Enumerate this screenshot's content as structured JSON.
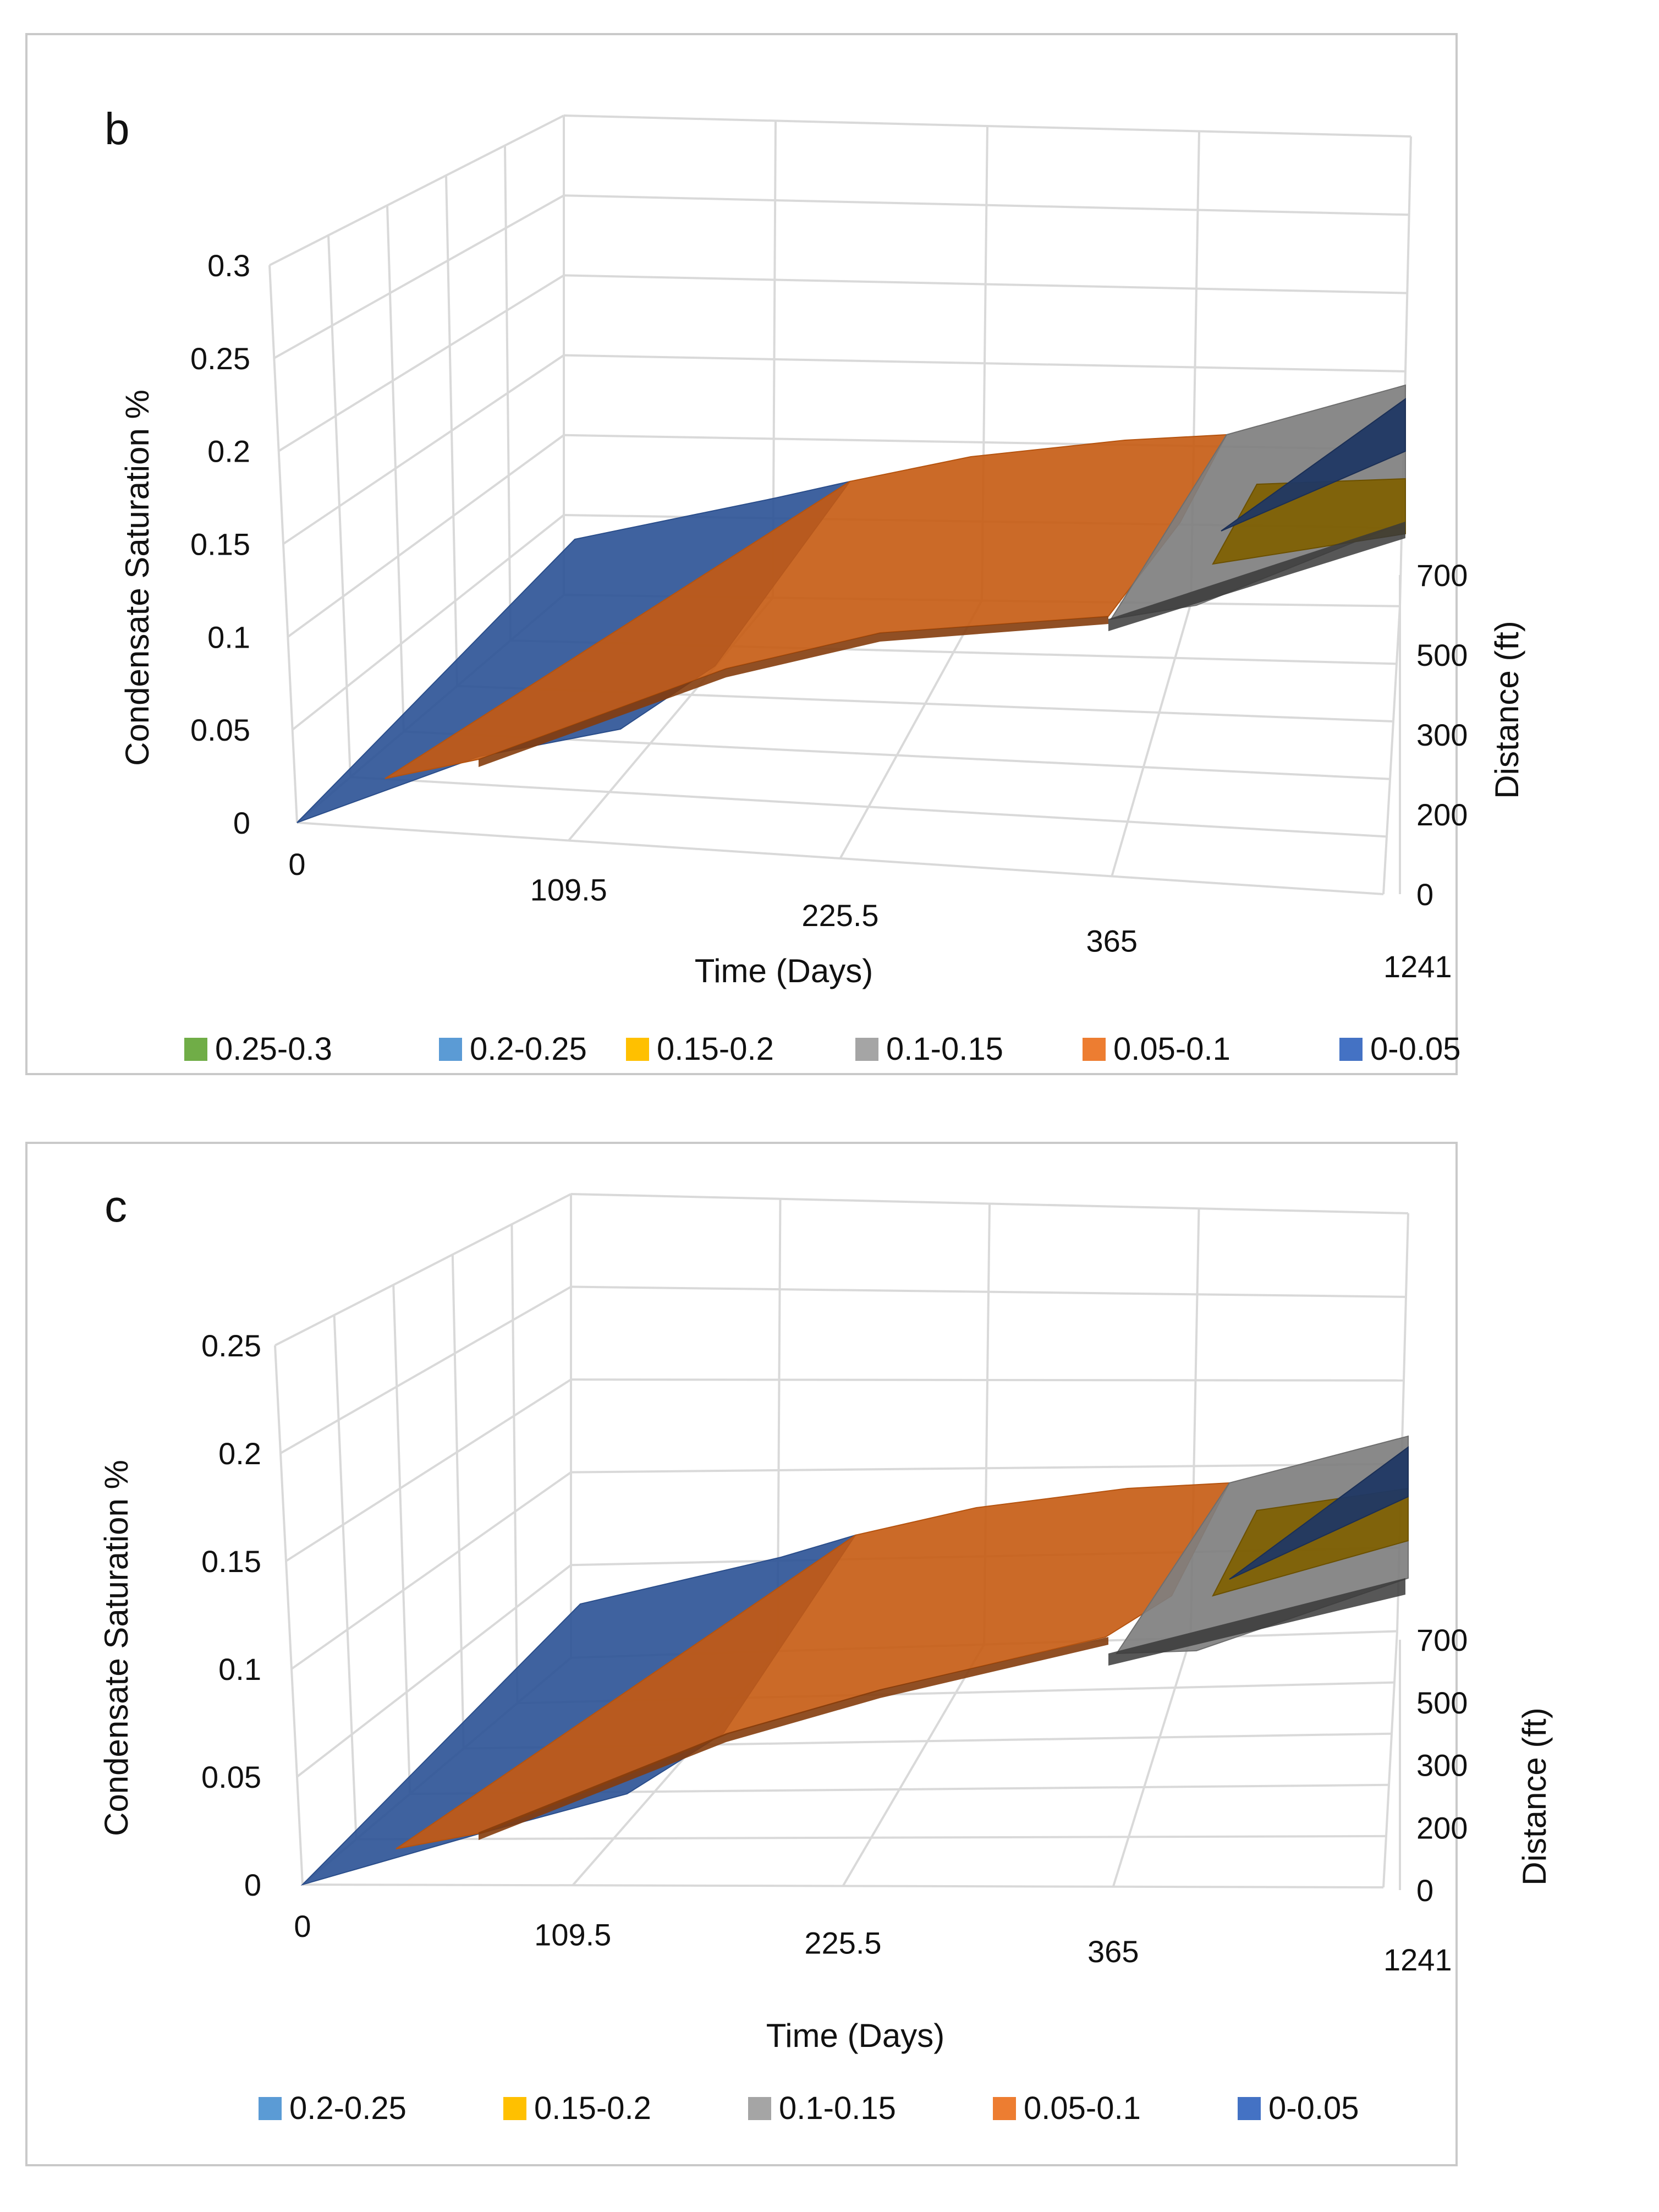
{
  "chart_data": [
    {
      "panel": "b",
      "type": "surface",
      "xlabel": "Time (Days)",
      "ylabel": "Condensate Saturation %",
      "zlabel": "Distance (ft)",
      "x_categories": [
        "0",
        "109.5",
        "225.5",
        "365",
        "1241"
      ],
      "z_categories": [
        "0",
        "200",
        "300",
        "500",
        "700"
      ],
      "y_ticks": [
        "0",
        "0.05",
        "0.1",
        "0.15",
        "0.2",
        "0.25",
        "0.3"
      ],
      "ylim": [
        0,
        0.3
      ],
      "legend": [
        {
          "label": "0.25-0.3",
          "color": "#70AD47"
        },
        {
          "label": "0.2-0.25",
          "color": "#5B9BD5"
        },
        {
          "label": "0.15-0.2",
          "color": "#FFC000"
        },
        {
          "label": "0.1-0.15",
          "color": "#A5A5A5"
        },
        {
          "label": "0.05-0.1",
          "color": "#ED7D31"
        },
        {
          "label": "0-0.05",
          "color": "#4472C4"
        }
      ]
    },
    {
      "panel": "c",
      "type": "surface",
      "xlabel": "Time (Days)",
      "ylabel": "Condensate Saturation %",
      "zlabel": "Distance (ft)",
      "x_categories": [
        "0",
        "109.5",
        "225.5",
        "365",
        "1241"
      ],
      "z_categories": [
        "0",
        "200",
        "300",
        "500",
        "700"
      ],
      "y_ticks": [
        "0",
        "0.05",
        "0.1",
        "0.15",
        "0.2",
        "0.25"
      ],
      "ylim": [
        0,
        0.25
      ],
      "legend": [
        {
          "label": "0.2-0.25",
          "color": "#5B9BD5"
        },
        {
          "label": "0.15-0.2",
          "color": "#FFC000"
        },
        {
          "label": "0.1-0.15",
          "color": "#A5A5A5"
        },
        {
          "label": "0.05-0.1",
          "color": "#ED7D31"
        },
        {
          "label": "0-0.05",
          "color": "#4472C4"
        }
      ]
    }
  ]
}
